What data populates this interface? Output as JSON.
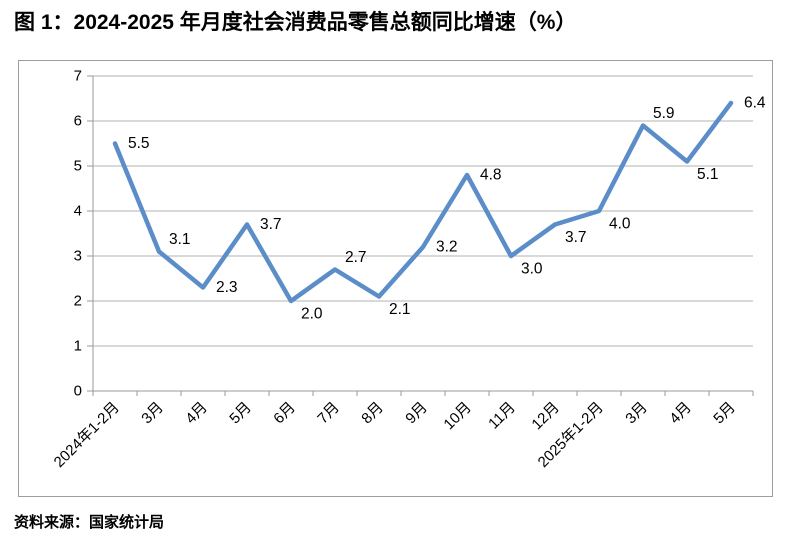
{
  "title": "图 1：2024-2025 年月度社会消费品零售总额同比增速（%）",
  "source_note": "资料来源：国家统计局",
  "colors": {
    "line": "#5b8dc8",
    "gridline": "#b3b3b3",
    "axis": "#999999",
    "frame_border": "#9d9d9d",
    "text": "#000000"
  },
  "chart_data": {
    "type": "line",
    "title": "图 1：2024-2025 年月度社会消费品零售总额同比增速（%）",
    "categories": [
      "2024年1-2月",
      "3月",
      "4月",
      "5月",
      "6月",
      "7月",
      "8月",
      "9月",
      "10月",
      "11月",
      "12月",
      "2025年1-2月",
      "3月",
      "4月",
      "5月"
    ],
    "values": [
      5.5,
      3.1,
      2.3,
      3.7,
      2.0,
      2.7,
      2.1,
      3.2,
      4.8,
      3.0,
      3.7,
      4.0,
      5.9,
      5.1,
      6.4
    ],
    "data_labels": [
      "5.5",
      "3.1",
      "2.3",
      "3.7",
      "2.0",
      "2.7",
      "2.1",
      "3.2",
      "4.8",
      "3.0",
      "3.7",
      "4.0",
      "5.9",
      "5.1",
      "6.4"
    ],
    "yticks": [
      "0",
      "1",
      "2",
      "3",
      "4",
      "5",
      "6",
      "7"
    ],
    "ylim": [
      0,
      7
    ],
    "xlabel": "",
    "ylabel": "",
    "grid": "horizontal",
    "legend": "none",
    "x_label_rotation": -45,
    "label_positions": [
      "r",
      "ar",
      "r",
      "r",
      "br",
      "ar",
      "br",
      "r",
      "r",
      "br",
      "br",
      "br",
      "ar",
      "br",
      "r"
    ]
  }
}
